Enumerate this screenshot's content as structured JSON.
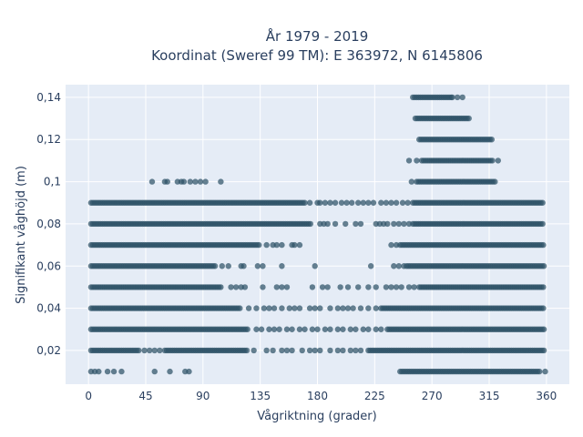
{
  "chart_data": {
    "type": "scatter",
    "title_line1": "År 1979 - 2019",
    "title_line2": "Koordinat (Sweref 99 TM): E 363972, N 6145806",
    "xlabel": "Vågriktning (grader)",
    "ylabel": "Signifikant våghöjd (m)",
    "xlim": [
      -18,
      378
    ],
    "ylim": [
      0.004,
      0.146
    ],
    "x_ticks": [
      0,
      45,
      90,
      135,
      180,
      225,
      270,
      315,
      360
    ],
    "x_tick_labels": [
      "0",
      "45",
      "90",
      "135",
      "180",
      "225",
      "270",
      "315",
      "360"
    ],
    "y_ticks": [
      0.02,
      0.04,
      0.06,
      0.08,
      0.1,
      0.12,
      0.14
    ],
    "y_tick_labels": [
      "0,02",
      "0,04",
      "0,06",
      "0,08",
      "0,1",
      "0,12",
      "0,14"
    ],
    "grid": true,
    "background_color": "#e5ecf6",
    "marker_color": "#2e5266",
    "series": [
      {
        "y": 0.14,
        "dense": [
          [
            255,
            285
          ]
        ],
        "sparse": [
          286,
          290,
          294
        ]
      },
      {
        "y": 0.13,
        "dense": [
          [
            257,
            300
          ]
        ],
        "sparse": []
      },
      {
        "y": 0.12,
        "dense": [
          [
            260,
            317
          ]
        ],
        "sparse": []
      },
      {
        "y": 0.11,
        "dense": [
          [
            262,
            318
          ]
        ],
        "sparse": [
          252,
          258,
          322
        ]
      },
      {
        "y": 0.1,
        "dense": [
          [
            258,
            320
          ]
        ],
        "sparse": [
          50,
          60,
          62,
          70,
          73,
          75,
          80,
          84,
          88,
          92,
          104,
          254
        ]
      },
      {
        "y": 0.09,
        "dense": [
          [
            2,
            170
          ],
          [
            255,
            358
          ]
        ],
        "sparse": [
          174,
          180,
          182,
          186,
          190,
          194,
          199,
          203,
          207,
          212,
          216,
          220,
          224,
          230,
          234,
          238,
          242,
          247,
          251
        ]
      },
      {
        "y": 0.08,
        "dense": [
          [
            2,
            175
          ],
          [
            255,
            358
          ]
        ],
        "sparse": [
          182,
          185,
          188,
          194,
          202,
          210,
          214,
          226,
          229,
          232,
          235,
          240,
          244,
          248,
          252
        ]
      },
      {
        "y": 0.07,
        "dense": [
          [
            2,
            135
          ],
          [
            245,
            358
          ]
        ],
        "sparse": [
          140,
          145,
          148,
          152,
          160,
          162,
          166,
          238,
          242
        ]
      },
      {
        "y": 0.06,
        "dense": [
          [
            2,
            100
          ],
          [
            250,
            358
          ]
        ],
        "sparse": [
          105,
          110,
          120,
          122,
          133,
          137,
          152,
          178,
          222,
          240,
          244,
          248
        ]
      },
      {
        "y": 0.05,
        "dense": [
          [
            2,
            105
          ],
          [
            260,
            358
          ]
        ],
        "sparse": [
          112,
          116,
          120,
          123,
          137,
          148,
          152,
          156,
          176,
          184,
          188,
          198,
          204,
          212,
          220,
          226,
          234,
          238,
          242,
          246,
          252,
          256
        ]
      },
      {
        "y": 0.04,
        "dense": [
          [
            2,
            120
          ],
          [
            230,
            358
          ]
        ],
        "sparse": [
          126,
          132,
          138,
          142,
          146,
          152,
          158,
          162,
          166,
          174,
          178,
          182,
          190,
          196,
          200,
          204,
          208,
          214,
          220,
          226
        ]
      },
      {
        "y": 0.03,
        "dense": [
          [
            2,
            125
          ],
          [
            235,
            358
          ]
        ],
        "sparse": [
          132,
          136,
          142,
          146,
          150,
          156,
          160,
          166,
          170,
          176,
          180,
          186,
          190,
          196,
          200,
          206,
          210,
          216,
          220,
          226,
          230
        ]
      },
      {
        "y": 0.02,
        "dense": [
          [
            2,
            40
          ],
          [
            60,
            125
          ],
          [
            220,
            358
          ]
        ],
        "sparse": [
          44,
          48,
          52,
          56,
          130,
          140,
          145,
          152,
          156,
          160,
          168,
          174,
          178,
          182,
          190,
          196,
          200,
          206,
          210,
          214
        ]
      },
      {
        "y": 0.01,
        "dense": [
          [
            245,
            355
          ]
        ],
        "sparse": [
          2,
          5,
          8,
          15,
          20,
          26,
          52,
          64,
          76,
          79,
          359
        ]
      }
    ]
  }
}
